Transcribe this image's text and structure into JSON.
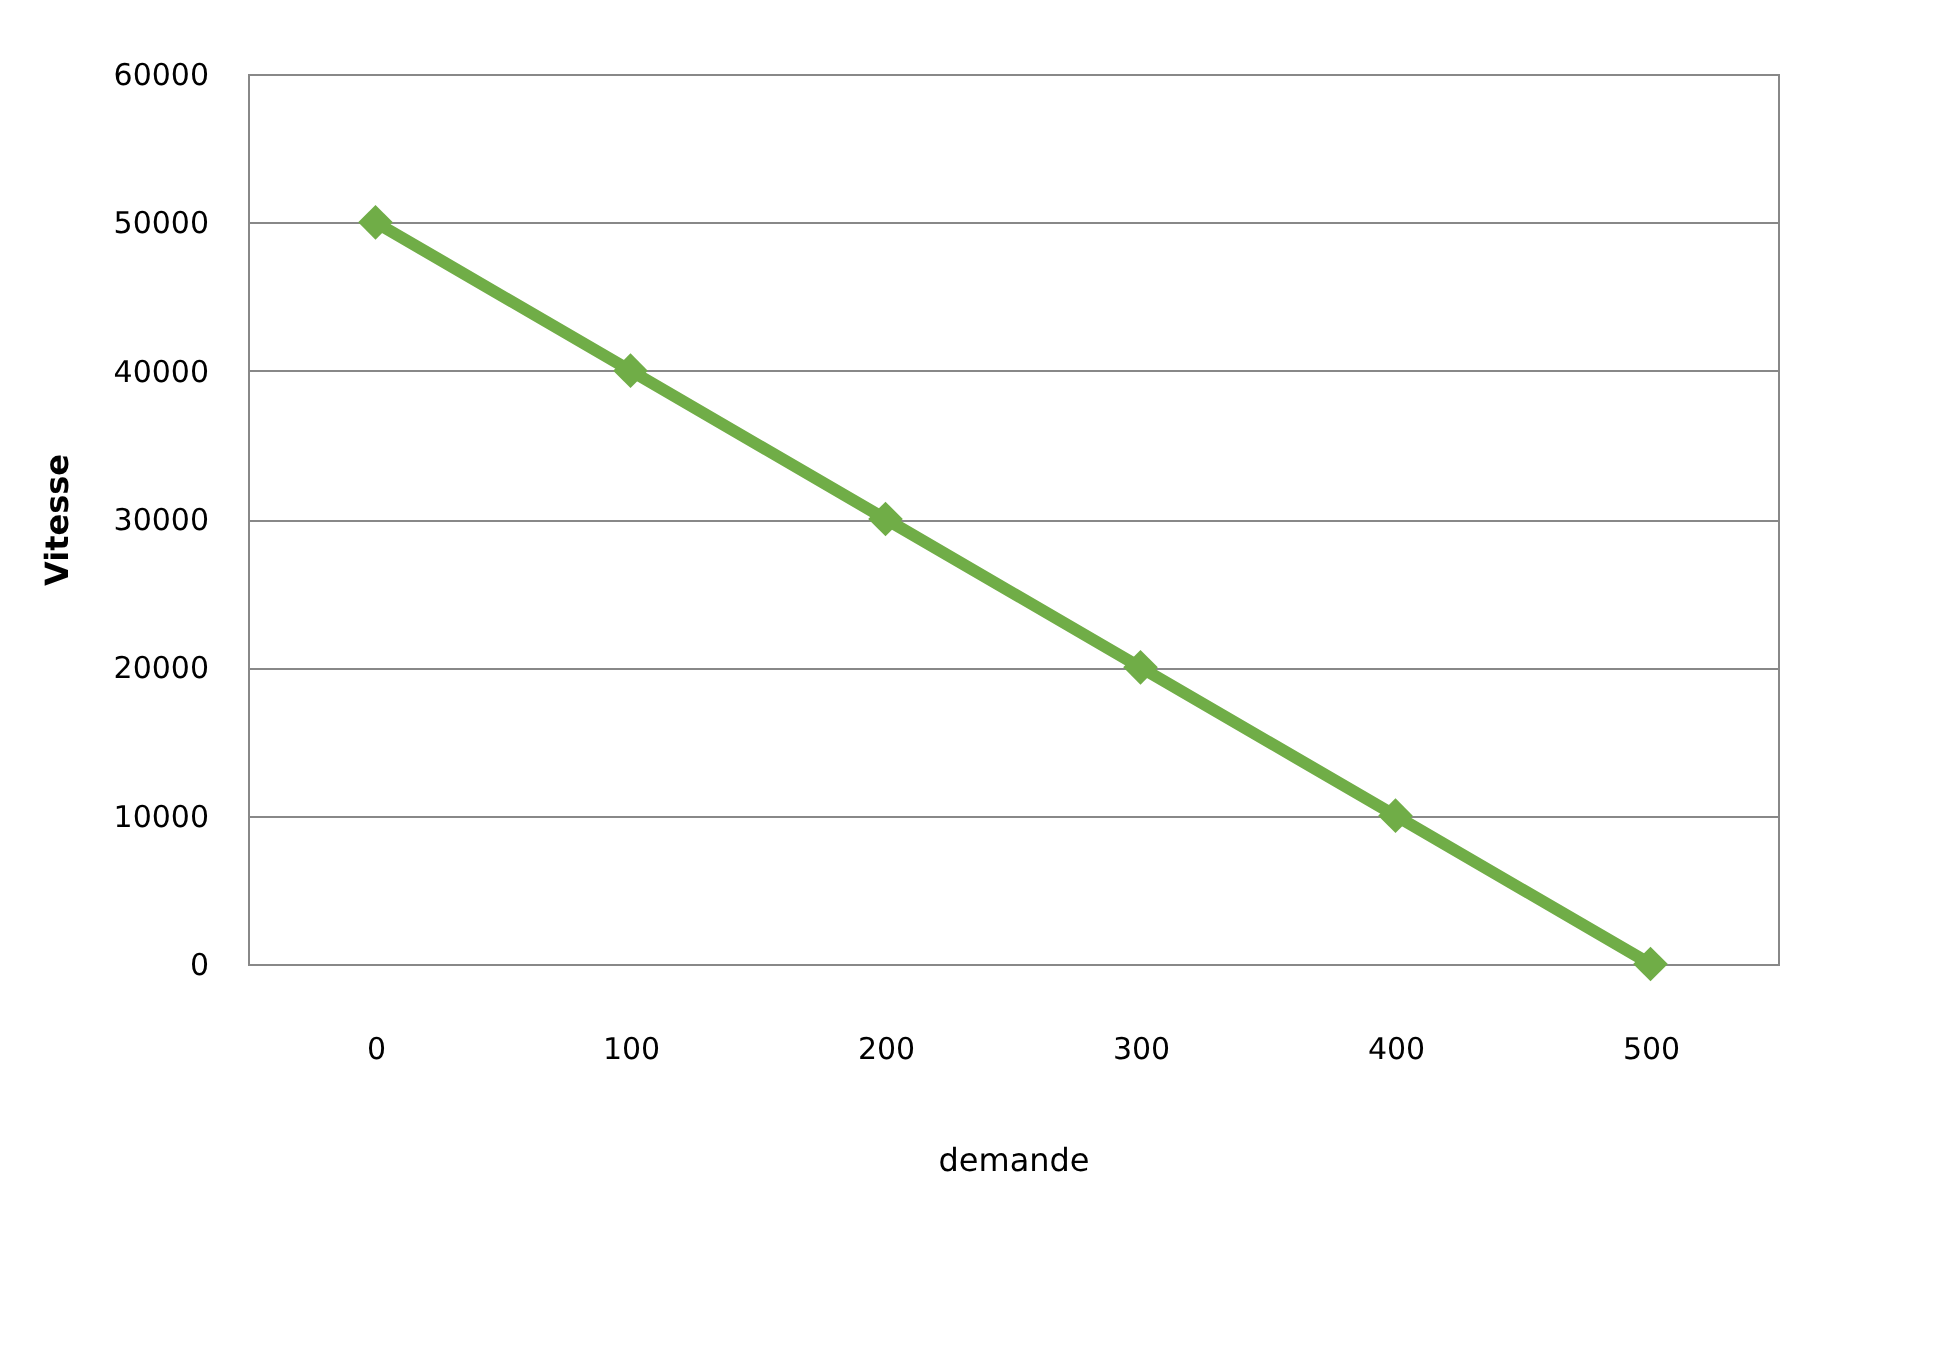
{
  "chart_data": {
    "type": "line",
    "xlabel": "demande",
    "ylabel": "Vitesse",
    "categories": [
      "0",
      "100",
      "200",
      "300",
      "400",
      "500"
    ],
    "series": [
      {
        "color": "#70ad47",
        "values": [
          50000,
          40000,
          30000,
          20000,
          10000,
          0
        ]
      }
    ],
    "ylim": [
      0,
      60000
    ],
    "yticks": [
      0,
      10000,
      20000,
      30000,
      40000,
      50000,
      60000
    ],
    "grid": "y",
    "marker": "diamond",
    "line_style": "solid",
    "legend": false
  }
}
